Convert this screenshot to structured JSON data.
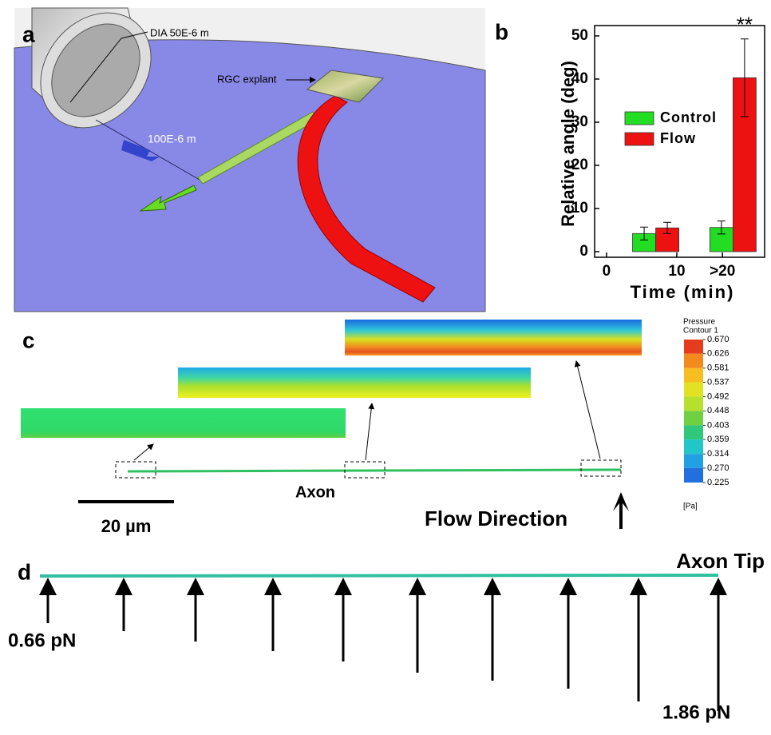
{
  "panel_a": {
    "label": "a",
    "diameter_label": "DIA 50E-6 m",
    "explant_label": "RGC explant",
    "distance_label": "100E-6 m"
  },
  "chart_data": {
    "type": "bar",
    "panel_label": "b",
    "x_label": "Time (min)",
    "y_label": "Relative angle (deg)",
    "x": [
      7,
      18
    ],
    "xlim": [
      -1.7,
      22.5
    ],
    "xticks": [
      0,
      10,
      {
        "value": 16.5,
        "label": ">20"
      }
    ],
    "ylim": [
      -1.3,
      52.4
    ],
    "yticks": [
      0,
      10,
      20,
      30,
      40,
      50
    ],
    "series": [
      {
        "name": "Control",
        "color": "#22dd22",
        "values": [
          4.2,
          5.6
        ],
        "errors": [
          1.5,
          1.5
        ]
      },
      {
        "name": "Flow",
        "color": "#ee1111",
        "values": [
          5.5,
          40.3
        ],
        "errors": [
          1.3,
          9
        ]
      }
    ],
    "annotation": "**",
    "legend": "upper left"
  },
  "panel_c": {
    "label": "c",
    "axon_label": "Axon",
    "scale_label": "20 µm",
    "flow_label": "Flow Direction",
    "colorbar": {
      "title": [
        "Pressure",
        "Contour 1"
      ],
      "unit": "[Pa]",
      "ticks": [
        {
          "value": 0.67,
          "label": "0.670"
        },
        {
          "value": 0.626,
          "label": "0.626"
        },
        {
          "value": 0.581,
          "label": "0.581"
        },
        {
          "value": 0.537,
          "label": "0.537"
        },
        {
          "value": 0.492,
          "label": "0.492"
        },
        {
          "value": 0.448,
          "label": "0.448"
        },
        {
          "value": 0.403,
          "label": "0.403"
        },
        {
          "value": 0.359,
          "label": "0.359"
        },
        {
          "value": 0.314,
          "label": "0.314"
        },
        {
          "value": 0.27,
          "label": "0.270"
        },
        {
          "value": 0.225,
          "label": "0.225"
        }
      ]
    }
  },
  "panel_d": {
    "label": "d",
    "tip_label": "Axon Tip",
    "min_force": "0.66 pN",
    "max_force": "1.86 pN"
  }
}
